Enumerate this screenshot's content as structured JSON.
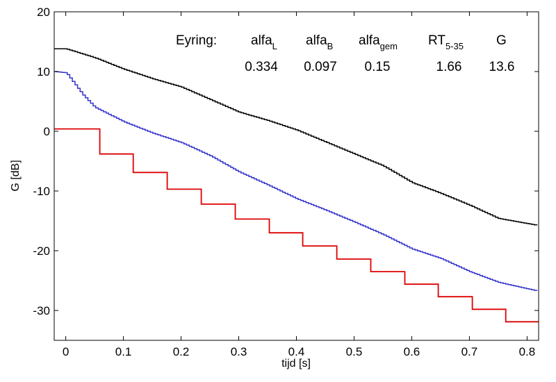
{
  "chart_data": {
    "type": "line",
    "title": "",
    "xlabel": "tijd  [s]",
    "ylabel": "G  [dB]",
    "xlim": [
      -0.02,
      0.82
    ],
    "ylim": [
      -35,
      20
    ],
    "xticks": [
      0,
      0.1,
      0.2,
      0.3,
      0.4,
      0.5,
      0.6,
      0.7,
      0.8
    ],
    "xtick_labels": [
      "0",
      "0.1",
      "0.2",
      "0.3",
      "0.4",
      "0.5",
      "0.6",
      "0.7",
      "0.8"
    ],
    "yticks": [
      -30,
      -20,
      -10,
      0,
      10,
      20
    ],
    "ytick_labels": [
      "-30",
      "-20",
      "-10",
      "0",
      "10",
      "20"
    ],
    "grid": false,
    "legend": null,
    "series": [
      {
        "color": "#000000",
        "style": "smooth-staircase",
        "points": [
          [
            -0.02,
            13.8
          ],
          [
            0.0,
            13.8
          ],
          [
            0.05,
            12.3
          ],
          [
            0.1,
            10.4
          ],
          [
            0.15,
            8.8
          ],
          [
            0.2,
            7.4
          ],
          [
            0.25,
            5.3
          ],
          [
            0.3,
            3.2
          ],
          [
            0.35,
            1.8
          ],
          [
            0.4,
            0.2
          ],
          [
            0.45,
            -1.8
          ],
          [
            0.5,
            -3.8
          ],
          [
            0.55,
            -5.8
          ],
          [
            0.6,
            -8.6
          ],
          [
            0.65,
            -10.4
          ],
          [
            0.7,
            -12.4
          ],
          [
            0.75,
            -14.6
          ],
          [
            0.82,
            -15.8
          ]
        ]
      },
      {
        "color": "#3333cc",
        "style": "smooth-staircase",
        "points": [
          [
            -0.02,
            10.0
          ],
          [
            0.0,
            9.8
          ],
          [
            0.03,
            6.0
          ],
          [
            0.05,
            4.0
          ],
          [
            0.1,
            1.6
          ],
          [
            0.15,
            -0.3
          ],
          [
            0.2,
            -1.9
          ],
          [
            0.25,
            -4.1
          ],
          [
            0.3,
            -6.8
          ],
          [
            0.35,
            -9.0
          ],
          [
            0.4,
            -11.3
          ],
          [
            0.45,
            -13.2
          ],
          [
            0.5,
            -15.2
          ],
          [
            0.55,
            -17.3
          ],
          [
            0.6,
            -19.7
          ],
          [
            0.65,
            -21.3
          ],
          [
            0.7,
            -23.5
          ],
          [
            0.75,
            -25.3
          ],
          [
            0.82,
            -26.8
          ]
        ]
      },
      {
        "color": "#dd0000",
        "style": "steps",
        "points": [
          [
            -0.02,
            0.4
          ],
          [
            0.059,
            0.4
          ],
          [
            0.059,
            -3.8
          ],
          [
            0.117,
            -3.8
          ],
          [
            0.117,
            -6.9
          ],
          [
            0.176,
            -6.9
          ],
          [
            0.176,
            -9.7
          ],
          [
            0.235,
            -9.7
          ],
          [
            0.235,
            -12.2
          ],
          [
            0.294,
            -12.2
          ],
          [
            0.294,
            -14.7
          ],
          [
            0.353,
            -14.7
          ],
          [
            0.353,
            -17.0
          ],
          [
            0.411,
            -17.0
          ],
          [
            0.411,
            -19.2
          ],
          [
            0.47,
            -19.2
          ],
          [
            0.47,
            -21.4
          ],
          [
            0.529,
            -21.4
          ],
          [
            0.529,
            -23.5
          ],
          [
            0.588,
            -23.5
          ],
          [
            0.588,
            -25.6
          ],
          [
            0.646,
            -25.6
          ],
          [
            0.646,
            -27.7
          ],
          [
            0.705,
            -27.7
          ],
          [
            0.705,
            -29.8
          ],
          [
            0.763,
            -29.8
          ],
          [
            0.763,
            -31.9
          ],
          [
            0.82,
            -31.9
          ]
        ]
      }
    ],
    "annotation": {
      "row_label": "Eyring:",
      "columns": [
        {
          "base": "alfa",
          "sub": "L",
          "value": "0.334"
        },
        {
          "base": "alfa",
          "sub": "B",
          "value": "0.097"
        },
        {
          "base": "alfa",
          "sub": "gem",
          "value": "0.15"
        },
        {
          "base": "RT",
          "sub": "5-35",
          "value": "1.66"
        },
        {
          "base": "G",
          "sub": "",
          "value": "13.6"
        }
      ]
    }
  }
}
